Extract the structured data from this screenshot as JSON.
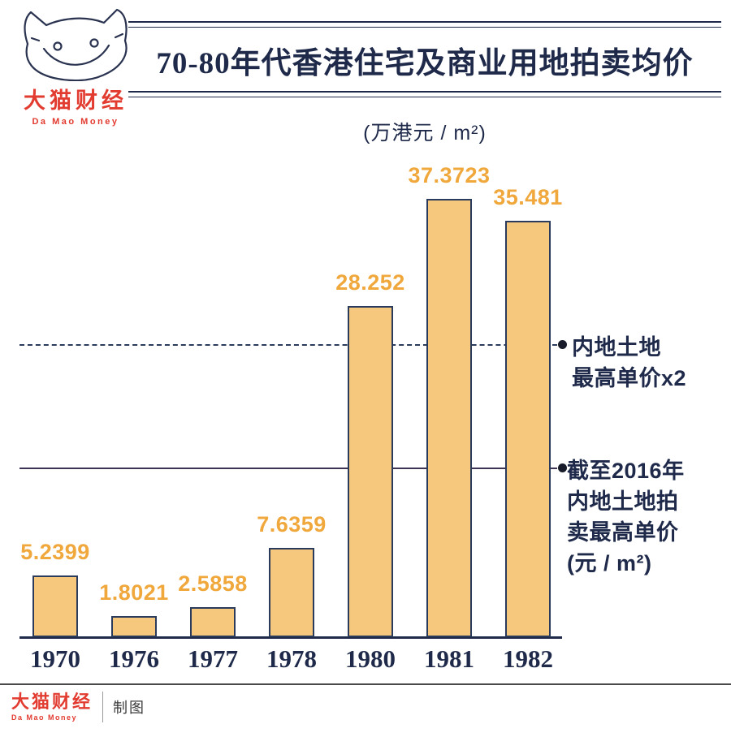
{
  "logo": {
    "brand_cn": "大猫财经",
    "brand_en": "Da Mao Money"
  },
  "header": {
    "title": "70-80年代香港住宅及商业用地拍卖均价",
    "subtitle": "(万港元 / m²)"
  },
  "chart_data": {
    "type": "bar",
    "title": "70-80年代香港住宅及商业用地拍卖均价",
    "unit_label": "(万港元 / m²)",
    "categories": [
      "1970",
      "1976",
      "1977",
      "1978",
      "1980",
      "1981",
      "1982"
    ],
    "values": [
      5.2399,
      1.8021,
      2.5858,
      7.6359,
      28.252,
      37.3723,
      35.481
    ],
    "value_labels": [
      "5.2399",
      "1.8021",
      "2.5858",
      "7.6359",
      "28.252",
      "37.3723",
      "35.481"
    ],
    "xlabel": "",
    "ylabel": "",
    "ylim": [
      0,
      40
    ],
    "grid": false,
    "legend": "none",
    "bar_color": "#F6C87D",
    "bar_border_color": "#2B3B5C",
    "value_label_color": "#F0A83C",
    "reference_lines": [
      {
        "id": "mainland-highest-x2",
        "style": "dashed",
        "value": 24.9,
        "color": "#2B3B5C",
        "label_lines": [
          "内地土地",
          "最高单价x2"
        ]
      },
      {
        "id": "mainland-highest-2016",
        "style": "solid",
        "value": 14.4,
        "color": "#3D3355",
        "label_lines": [
          "截至2016年",
          "内地土地拍",
          "卖最高单价",
          "(元 / m²)"
        ]
      }
    ]
  },
  "footer": {
    "brand_cn": "大猫财经",
    "brand_en": "Da Mao Money",
    "credit": "制图"
  }
}
